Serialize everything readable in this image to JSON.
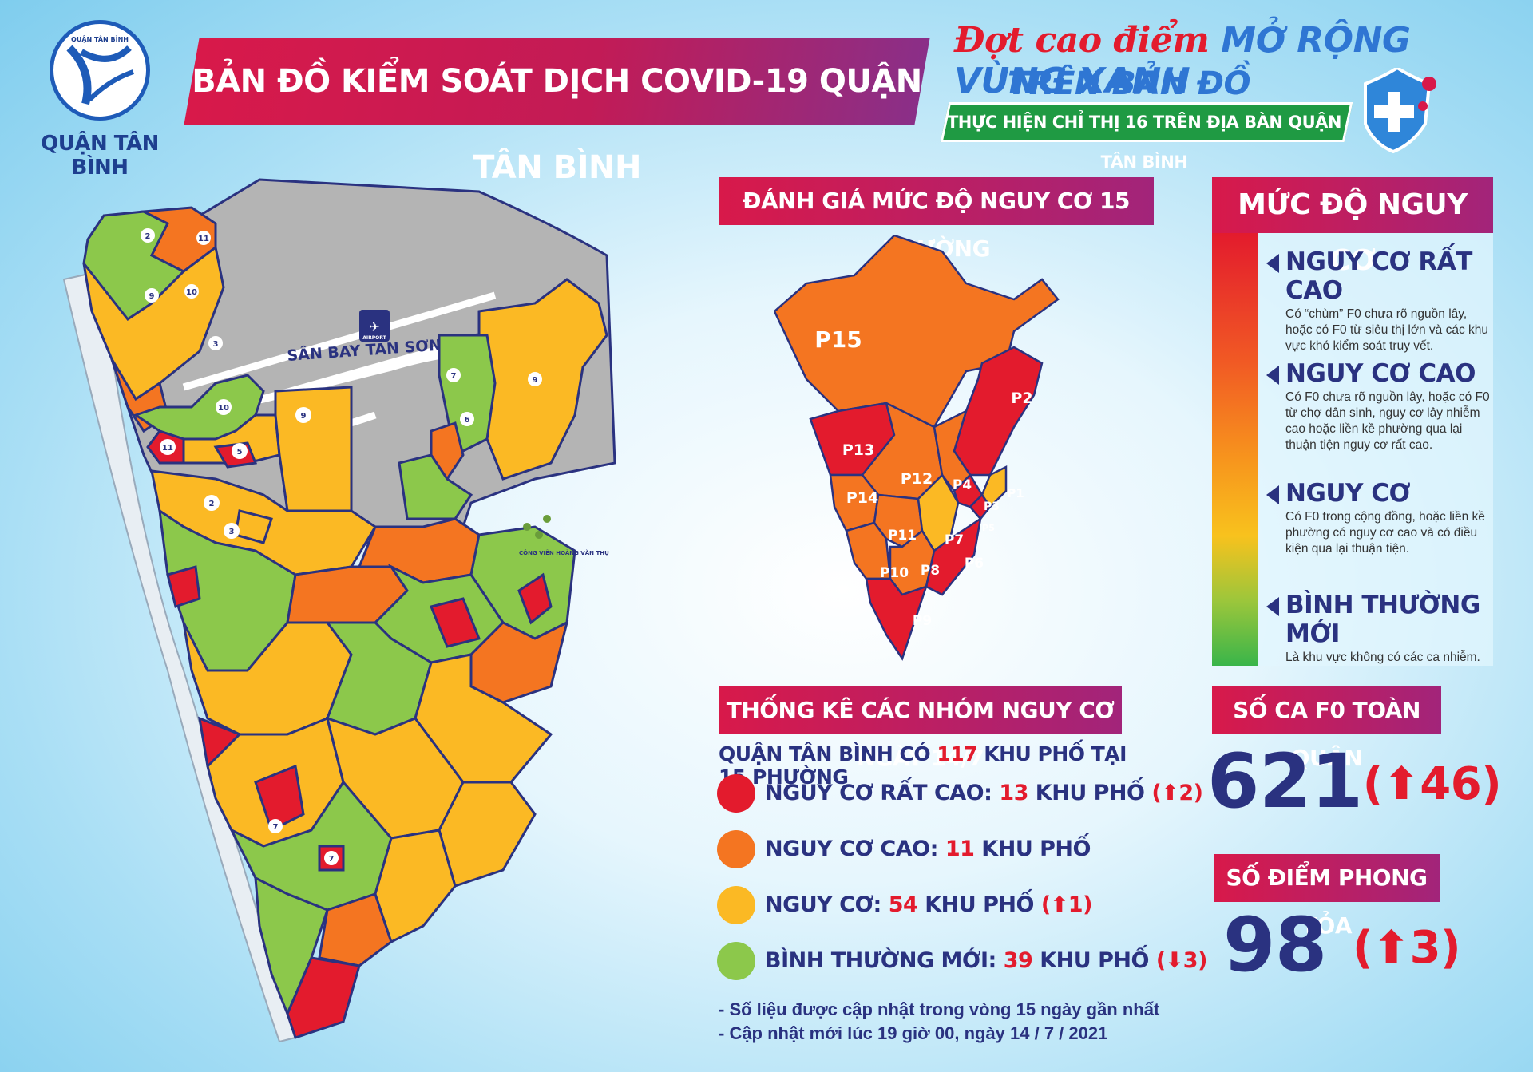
{
  "logo": {
    "ring_text": "QUẬN TÂN BÌNH",
    "caption": "QUẬN TÂN BÌNH"
  },
  "title": "BẢN ĐỒ KIỂM SOÁT DỊCH COVID-19 QUẬN TÂN BÌNH",
  "campaign": {
    "line1_red": "Đợt cao điểm",
    "line1_blue": "MỞ RỘNG VÙNG XANH",
    "line2": "TRÊN BẢN ĐỒ COVID-19",
    "line3": "THỰC HIỆN CHỈ THỊ 16 TRÊN ĐỊA BÀN QUẬN TÂN BÌNH"
  },
  "map": {
    "airport_label": "SÂN BAY TÂN SƠN NHẤT",
    "airport_badge": "AIRPORT",
    "park_label": "CÔNG VIÊN HOÀNG VĂN THỤ",
    "colors": {
      "very_high": "#e31b2d",
      "high": "#f47521",
      "risk": "#fbb924",
      "normal": "#8cc84b",
      "airport": "#b4b4b4",
      "border": "#2a3280"
    }
  },
  "ward_map": {
    "header": "ĐÁNH GIÁ MỨC ĐỘ NGUY CƠ 15 PHƯỜNG",
    "wards": [
      {
        "name": "P15",
        "level": "high"
      },
      {
        "name": "P2",
        "level": "very_high"
      },
      {
        "name": "P13",
        "level": "very_high"
      },
      {
        "name": "P12",
        "level": "high"
      },
      {
        "name": "P4",
        "level": "high"
      },
      {
        "name": "P1",
        "level": "risk"
      },
      {
        "name": "P14",
        "level": "high"
      },
      {
        "name": "P3",
        "level": "very_high"
      },
      {
        "name": "P5",
        "level": "very_high"
      },
      {
        "name": "P11",
        "level": "high"
      },
      {
        "name": "P7",
        "level": "risk"
      },
      {
        "name": "P10",
        "level": "high"
      },
      {
        "name": "P8",
        "level": "high"
      },
      {
        "name": "P6",
        "level": "very_high"
      },
      {
        "name": "P9",
        "level": "very_high"
      }
    ]
  },
  "legend": {
    "header": "MỨC ĐỘ NGUY CƠ",
    "items": [
      {
        "title": "NGUY CƠ RẤT CAO",
        "desc": "Có “chùm” F0 chưa rõ nguồn lây, hoặc có F0 từ siêu thị lớn và các khu vực khó kiểm soát truy vết."
      },
      {
        "title": "NGUY CƠ CAO",
        "desc": "Có F0 chưa rõ nguồn lây, hoặc có F0 từ chợ dân sinh, nguy cơ lây nhiễm cao hoặc liền kề phường qua lại thuận tiện nguy cơ rất cao."
      },
      {
        "title": "NGUY CƠ",
        "desc": "Có F0 trong cộng đồng, hoặc liền kề phường có nguy cơ cao và có điều kiện qua lại thuận tiện."
      },
      {
        "title": "BÌNH THƯỜNG MỚI",
        "desc": "Là khu vực không có các ca nhiễm."
      }
    ]
  },
  "stats": {
    "header": "THỐNG KÊ CÁC NHÓM NGUY CƠ NGÀY 14/7",
    "total_prefix": "QUẬN TÂN BÌNH CÓ",
    "total_count": "117",
    "total_suffix": "KHU PHỐ TẠI 15 PHƯỜNG",
    "rows": [
      {
        "label": "NGUY CƠ RẤT CAO:",
        "count": "13",
        "unit": "KHU PHỐ",
        "change": "(⬆2)",
        "color": "#e31b2d"
      },
      {
        "label": "NGUY CƠ CAO:",
        "count": "11",
        "unit": "KHU PHỐ",
        "change": "",
        "color": "#f47521"
      },
      {
        "label": "NGUY CƠ:",
        "count": "54",
        "unit": "KHU PHỐ",
        "change": "(⬆1)",
        "color": "#fbb924"
      },
      {
        "label": "BÌNH THƯỜNG MỚI:",
        "count": "39",
        "unit": "KHU PHỐ",
        "change": "(⬇3)",
        "color": "#8cc84b"
      }
    ],
    "note1": "- Số liệu được cập nhật trong vòng 15 ngày gần nhất",
    "note2": "- Cập nhật mới lúc 19 giờ 00, ngày 14 / 7 / 2021"
  },
  "f0": {
    "header": "SỐ CA F0 TOÀN QUẬN",
    "value": "621",
    "change": "(⬆46)"
  },
  "lockdown": {
    "header": "SỐ ĐIỂM PHONG TỎA",
    "value": "98",
    "change": "(⬆3)"
  }
}
